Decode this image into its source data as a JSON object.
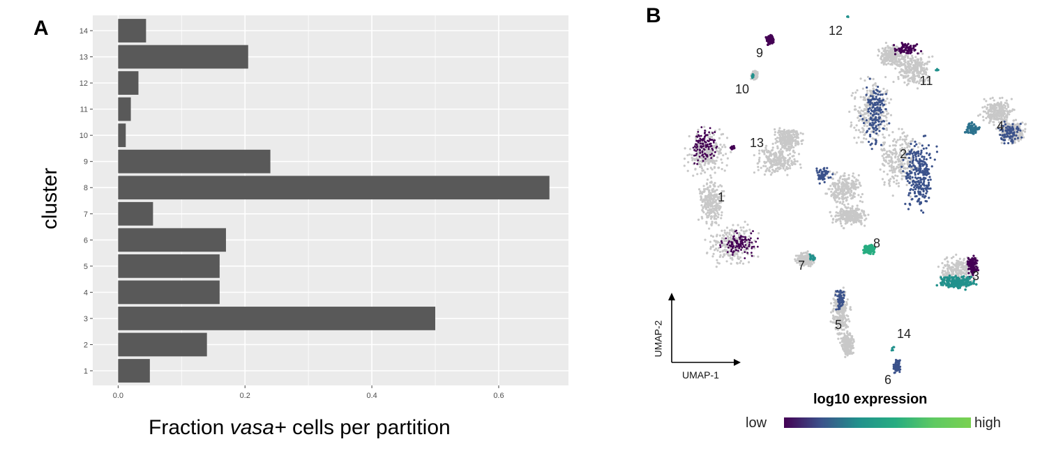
{
  "panel_a": {
    "label": "A"
  },
  "panel_b": {
    "label": "B"
  },
  "chart_data": [
    {
      "type": "bar",
      "orientation": "horizontal",
      "categories": [
        "1",
        "2",
        "3",
        "4",
        "5",
        "6",
        "7",
        "8",
        "9",
        "10",
        "11",
        "12",
        "13",
        "14"
      ],
      "values": [
        0.05,
        0.14,
        0.5,
        0.16,
        0.16,
        0.17,
        0.055,
        0.68,
        0.24,
        0.012,
        0.02,
        0.032,
        0.205,
        0.044
      ],
      "xlabel_prefix": "Fraction ",
      "xlabel_italic": "vasa+",
      "xlabel_suffix": " cells per partition",
      "ylabel": "cluster",
      "xlim": [
        -0.04,
        0.71
      ],
      "xticks": [
        "0.0",
        "0.2",
        "0.4",
        "0.6"
      ],
      "xtick_values": [
        0.0,
        0.2,
        0.4,
        0.6
      ],
      "grid": true,
      "bar_color": "#595959",
      "panel_bg": "#ebebeb"
    },
    {
      "type": "scatter",
      "xlabel": "UMAP-1",
      "ylabel": "UMAP-2",
      "cluster_labels": [
        "1",
        "2",
        "3",
        "4",
        "5",
        "6",
        "7",
        "8",
        "9",
        "10",
        "11",
        "12",
        "13",
        "14"
      ],
      "legend_title": "log10 expression",
      "legend_low": "low",
      "legend_high": "high",
      "colors": {
        "low": "#440154",
        "mid": "#21918c",
        "high": "#7ad151",
        "background": "#c8c8c8"
      }
    }
  ]
}
